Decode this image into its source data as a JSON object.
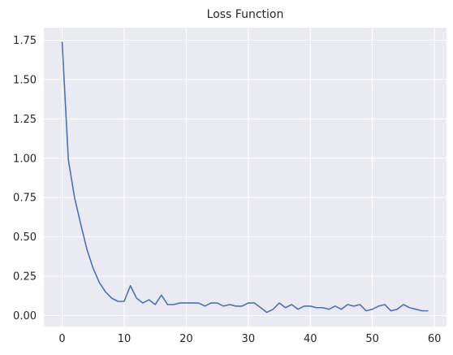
{
  "chart_data": {
    "type": "line",
    "title": "Loss Function",
    "xlabel": "",
    "ylabel": "",
    "xlim": [
      -2.95,
      61.95
    ],
    "ylim": [
      -0.07,
      1.83
    ],
    "xticks": [
      0,
      10,
      20,
      30,
      40,
      50,
      60
    ],
    "yticks": [
      0.0,
      0.25,
      0.5,
      0.75,
      1.0,
      1.25,
      1.5,
      1.75
    ],
    "ytick_labels": [
      "0.00",
      "0.25",
      "0.50",
      "0.75",
      "1.00",
      "1.25",
      "1.50",
      "1.75"
    ],
    "grid": true,
    "series": [
      {
        "name": "",
        "color": "#4c72b0",
        "x": [
          0,
          1,
          2,
          3,
          4,
          5,
          6,
          7,
          8,
          9,
          10,
          11,
          12,
          13,
          14,
          15,
          16,
          17,
          18,
          19,
          20,
          21,
          22,
          23,
          24,
          25,
          26,
          27,
          28,
          29,
          30,
          31,
          32,
          33,
          34,
          35,
          36,
          37,
          38,
          39,
          40,
          41,
          42,
          43,
          44,
          45,
          46,
          47,
          48,
          49,
          50,
          51,
          52,
          53,
          54,
          55,
          56,
          57,
          58,
          59
        ],
        "y": [
          1.74,
          0.99,
          0.75,
          0.58,
          0.42,
          0.3,
          0.21,
          0.15,
          0.11,
          0.09,
          0.09,
          0.19,
          0.11,
          0.08,
          0.1,
          0.07,
          0.13,
          0.07,
          0.07,
          0.08,
          0.08,
          0.08,
          0.08,
          0.06,
          0.08,
          0.08,
          0.06,
          0.07,
          0.06,
          0.06,
          0.08,
          0.08,
          0.05,
          0.02,
          0.04,
          0.08,
          0.05,
          0.07,
          0.04,
          0.06,
          0.06,
          0.05,
          0.05,
          0.04,
          0.06,
          0.04,
          0.07,
          0.06,
          0.07,
          0.03,
          0.04,
          0.06,
          0.07,
          0.03,
          0.04,
          0.07,
          0.05,
          0.04,
          0.03,
          0.03
        ]
      }
    ]
  },
  "style": {
    "plot_bg": "#eaeaf2",
    "grid_color": "#ffffff",
    "text_color": "#262626"
  }
}
